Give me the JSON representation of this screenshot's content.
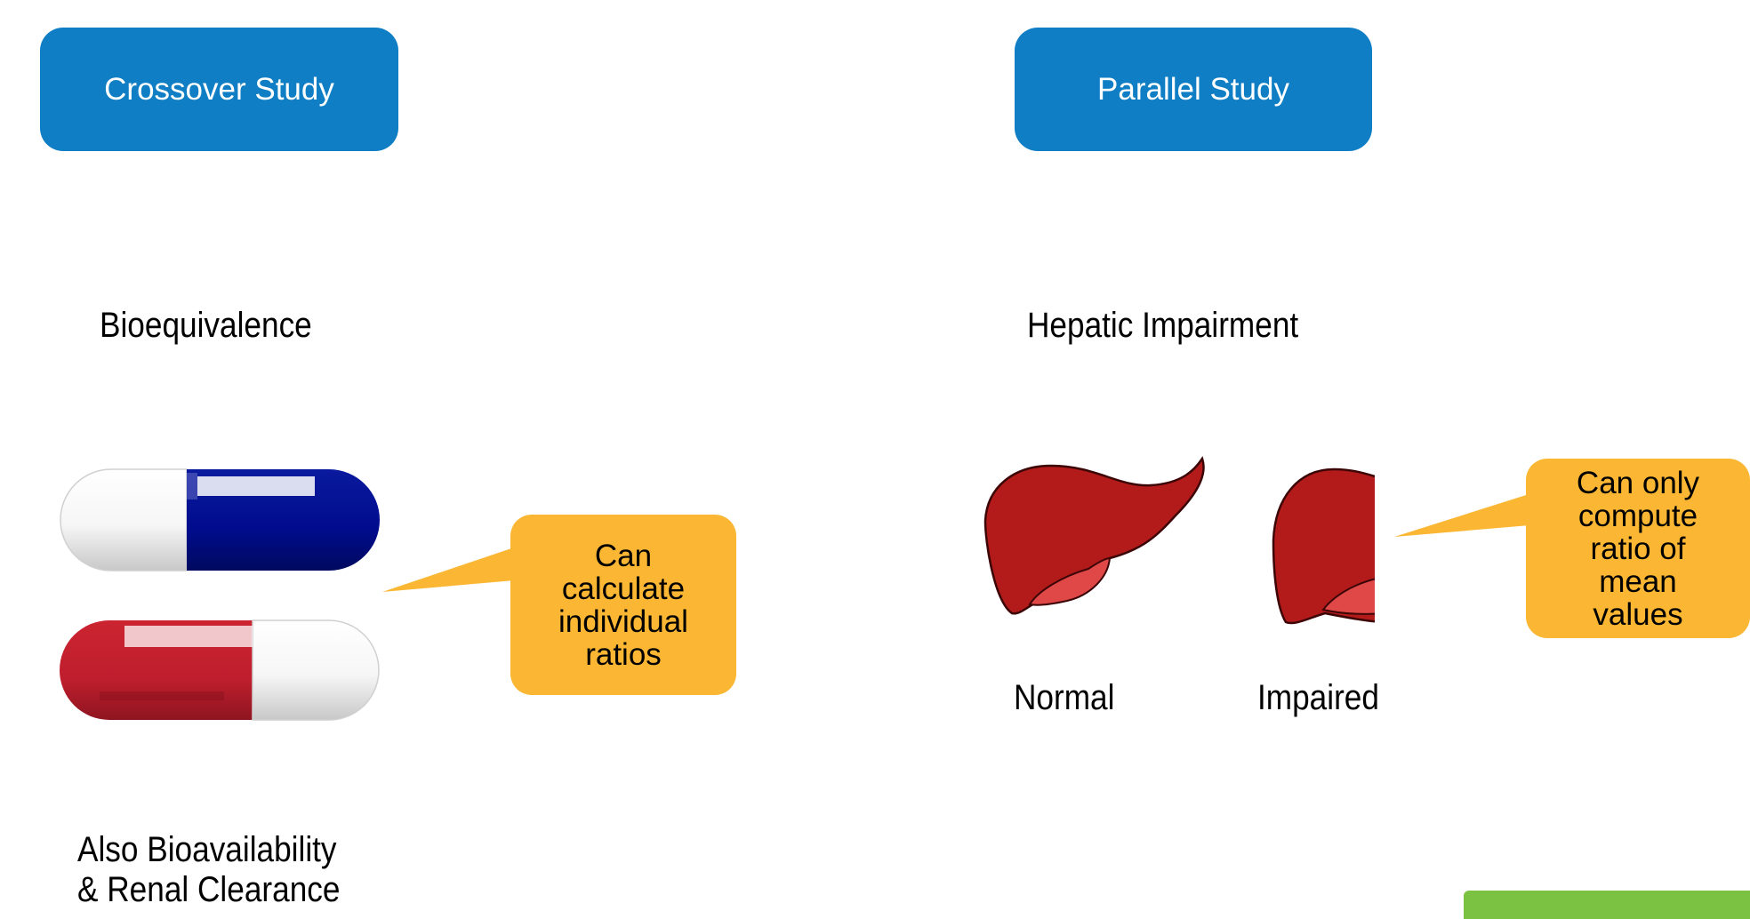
{
  "crossover": {
    "header": "Crossover Study",
    "study_type": "Bioequivalence",
    "callout_lines": [
      "Can",
      "calculate",
      "individual",
      "ratios"
    ],
    "footnote_lines": [
      "Also Bioavailability",
      "& Renal Clearance"
    ]
  },
  "parallel": {
    "header": "Parallel Study",
    "study_type": "Hepatic Impairment",
    "group_normal": "Normal",
    "group_impaired": "Impaired",
    "callout_lines": [
      "Can only",
      "compute",
      "ratio of",
      "mean",
      "values"
    ]
  },
  "colors": {
    "header_blue": "#0f7ec4",
    "callout_orange": "#fbb733",
    "capsule_blue": "#000c8c",
    "capsule_red": "#be1e2d",
    "liver_red": "#b31b1b",
    "gallbladder": "#e04848",
    "corner_green": "#7cc242"
  },
  "icons": [
    "capsule-blue-white-icon",
    "capsule-red-white-icon",
    "liver-normal-icon",
    "liver-impaired-icon"
  ]
}
